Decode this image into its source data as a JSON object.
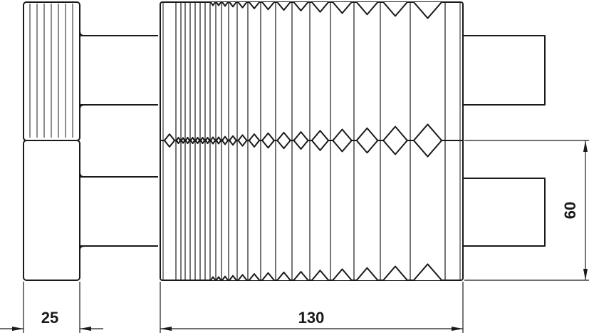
{
  "dimensions": {
    "knob_width": "25",
    "body_length": "130",
    "half_height": "60"
  },
  "colors": {
    "line": "#1a1a1a",
    "background": "#ffffff"
  }
}
